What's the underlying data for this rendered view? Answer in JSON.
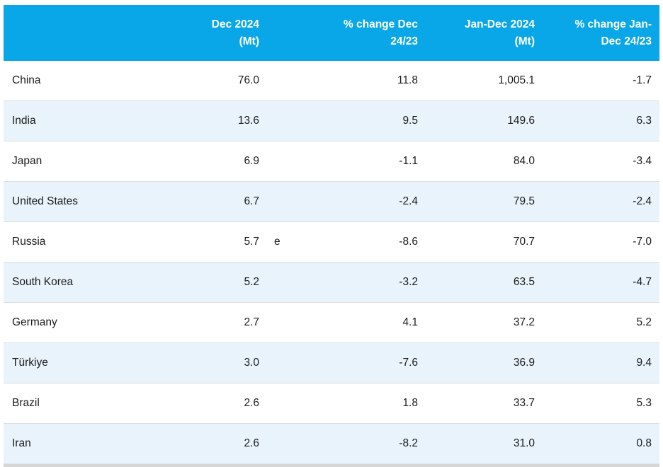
{
  "table": {
    "columns": [
      {
        "line1": "Dec 2024",
        "line2": "(Mt)"
      },
      {
        "line1": "% change Dec",
        "line2": "24/23"
      },
      {
        "line1": "Jan-Dec 2024",
        "line2": "(Mt)"
      },
      {
        "line1": "% change Jan-",
        "line2": "Dec 24/23"
      }
    ],
    "rows": [
      {
        "country": "China",
        "dec_mt": "76.0",
        "flag": "",
        "pct_change_dec": "11.8",
        "jan_dec_mt": "1,005.1",
        "pct_change_jan_dec": "-1.7"
      },
      {
        "country": "India",
        "dec_mt": "13.6",
        "flag": "",
        "pct_change_dec": "9.5",
        "jan_dec_mt": "149.6",
        "pct_change_jan_dec": "6.3"
      },
      {
        "country": "Japan",
        "dec_mt": "6.9",
        "flag": "",
        "pct_change_dec": "-1.1",
        "jan_dec_mt": "84.0",
        "pct_change_jan_dec": "-3.4"
      },
      {
        "country": "United States",
        "dec_mt": "6.7",
        "flag": "",
        "pct_change_dec": "-2.4",
        "jan_dec_mt": "79.5",
        "pct_change_jan_dec": "-2.4"
      },
      {
        "country": "Russia",
        "dec_mt": "5.7",
        "flag": "e",
        "pct_change_dec": "-8.6",
        "jan_dec_mt": "70.7",
        "pct_change_jan_dec": "-7.0"
      },
      {
        "country": "South Korea",
        "dec_mt": "5.2",
        "flag": "",
        "pct_change_dec": "-3.2",
        "jan_dec_mt": "63.5",
        "pct_change_jan_dec": "-4.7"
      },
      {
        "country": "Germany",
        "dec_mt": "2.7",
        "flag": "",
        "pct_change_dec": "4.1",
        "jan_dec_mt": "37.2",
        "pct_change_jan_dec": "5.2"
      },
      {
        "country": "Türkiye",
        "dec_mt": "3.0",
        "flag": "",
        "pct_change_dec": "-7.6",
        "jan_dec_mt": "36.9",
        "pct_change_jan_dec": "9.4"
      },
      {
        "country": "Brazil",
        "dec_mt": "2.6",
        "flag": "",
        "pct_change_dec": "1.8",
        "jan_dec_mt": "33.7",
        "pct_change_jan_dec": "5.3"
      },
      {
        "country": "Iran",
        "dec_mt": "2.6",
        "flag": "",
        "pct_change_dec": "-8.2",
        "jan_dec_mt": "31.0",
        "pct_change_jan_dec": "0.8"
      }
    ]
  },
  "chart_data": {
    "type": "table",
    "title": "",
    "column_headers": [
      "",
      "Dec 2024 (Mt)",
      "% change Dec 24/23",
      "Jan-Dec 2024 (Mt)",
      "% change Jan-Dec 24/23"
    ],
    "categories": [
      "China",
      "India",
      "Japan",
      "United States",
      "Russia",
      "South Korea",
      "Germany",
      "Türkiye",
      "Brazil",
      "Iran"
    ],
    "series": [
      {
        "name": "Dec 2024 (Mt)",
        "values": [
          76.0,
          13.6,
          6.9,
          6.7,
          5.7,
          5.2,
          2.7,
          3.0,
          2.6,
          2.6
        ]
      },
      {
        "name": "% change Dec 24/23",
        "values": [
          11.8,
          9.5,
          -1.1,
          -2.4,
          -8.6,
          -3.2,
          4.1,
          -7.6,
          1.8,
          -8.2
        ]
      },
      {
        "name": "Jan-Dec 2024 (Mt)",
        "values": [
          1005.1,
          149.6,
          84.0,
          79.5,
          70.7,
          63.5,
          37.2,
          36.9,
          33.7,
          31.0
        ]
      },
      {
        "name": "% change Jan-Dec 24/23",
        "values": [
          -1.7,
          6.3,
          -3.4,
          -2.4,
          -7.0,
          -4.7,
          5.2,
          9.4,
          5.3,
          0.8
        ]
      }
    ],
    "annotations": [
      {
        "row": "Russia",
        "column": "Dec 2024 (Mt)",
        "note": "e"
      }
    ],
    "layout": {
      "striped_rows": true,
      "header_position": "top",
      "numeric_alignment": "right"
    }
  },
  "colors": {
    "header_bg": "#09A7E8",
    "header_text": "#FFFFFF",
    "row_stripe": "#E9F3FB",
    "row_plain": "#FFFFFF",
    "row_border": "#DDDFE0",
    "cell_text": "#1B1B1B",
    "bottom_bar": "#D6D6D6"
  }
}
